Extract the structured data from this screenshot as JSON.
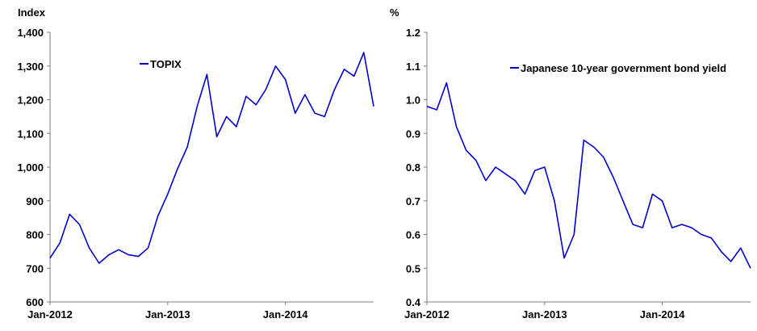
{
  "chart_data": [
    {
      "type": "line",
      "title": "",
      "ylabel": "Index",
      "xlabel": "",
      "ylim": [
        600,
        1400
      ],
      "yticks": [
        "600",
        "700",
        "800",
        "900",
        "1,000",
        "1,100",
        "1,200",
        "1,300",
        "1,400"
      ],
      "xticks": [
        "Jan-2012",
        "Jan-2013",
        "Jan-2014"
      ],
      "xlim": [
        "2012-01",
        "2014-10"
      ],
      "legend": "top-left",
      "grid": false,
      "series": [
        {
          "name": "TOPIX",
          "color": "#0000cc",
          "x": [
            "2012-01",
            "2012-02",
            "2012-03",
            "2012-04",
            "2012-05",
            "2012-06",
            "2012-07",
            "2012-08",
            "2012-09",
            "2012-10",
            "2012-11",
            "2012-12",
            "2013-01",
            "2013-02",
            "2013-03",
            "2013-04",
            "2013-05",
            "2013-06",
            "2013-07",
            "2013-08",
            "2013-09",
            "2013-10",
            "2013-11",
            "2013-12",
            "2014-01",
            "2014-02",
            "2014-03",
            "2014-04",
            "2014-05",
            "2014-06",
            "2014-07",
            "2014-08",
            "2014-09",
            "2014-10"
          ],
          "values": [
            730,
            775,
            860,
            830,
            760,
            715,
            740,
            755,
            740,
            735,
            760,
            855,
            920,
            995,
            1060,
            1180,
            1275,
            1090,
            1150,
            1120,
            1210,
            1185,
            1230,
            1300,
            1260,
            1160,
            1215,
            1160,
            1150,
            1230,
            1290,
            1270,
            1340,
            1180
          ]
        }
      ]
    },
    {
      "type": "line",
      "title": "",
      "ylabel": "%",
      "xlabel": "",
      "ylim": [
        0.4,
        1.2
      ],
      "yticks": [
        "0.4",
        "0.5",
        "0.6",
        "0.7",
        "0.8",
        "0.9",
        "1.0",
        "1.1",
        "1.2"
      ],
      "xticks": [
        "Jan-2012",
        "Jan-2013",
        "Jan-2014"
      ],
      "xlim": [
        "2012-01",
        "2014-10"
      ],
      "legend": "top-right",
      "grid": false,
      "series": [
        {
          "name": "Japanese 10-year government bond yield",
          "color": "#0000cc",
          "x": [
            "2012-01",
            "2012-02",
            "2012-03",
            "2012-04",
            "2012-05",
            "2012-06",
            "2012-07",
            "2012-08",
            "2012-09",
            "2012-10",
            "2012-11",
            "2012-12",
            "2013-01",
            "2013-02",
            "2013-03",
            "2013-04",
            "2013-05",
            "2013-06",
            "2013-07",
            "2013-08",
            "2013-09",
            "2013-10",
            "2013-11",
            "2013-12",
            "2014-01",
            "2014-02",
            "2014-03",
            "2014-04",
            "2014-05",
            "2014-06",
            "2014-07",
            "2014-08",
            "2014-09",
            "2014-10"
          ],
          "values": [
            0.98,
            0.97,
            1.05,
            0.92,
            0.85,
            0.82,
            0.76,
            0.8,
            0.78,
            0.76,
            0.72,
            0.79,
            0.8,
            0.7,
            0.53,
            0.6,
            0.88,
            0.86,
            0.83,
            0.77,
            0.7,
            0.63,
            0.62,
            0.72,
            0.7,
            0.62,
            0.63,
            0.62,
            0.6,
            0.59,
            0.55,
            0.52,
            0.56,
            0.5
          ]
        }
      ]
    }
  ]
}
